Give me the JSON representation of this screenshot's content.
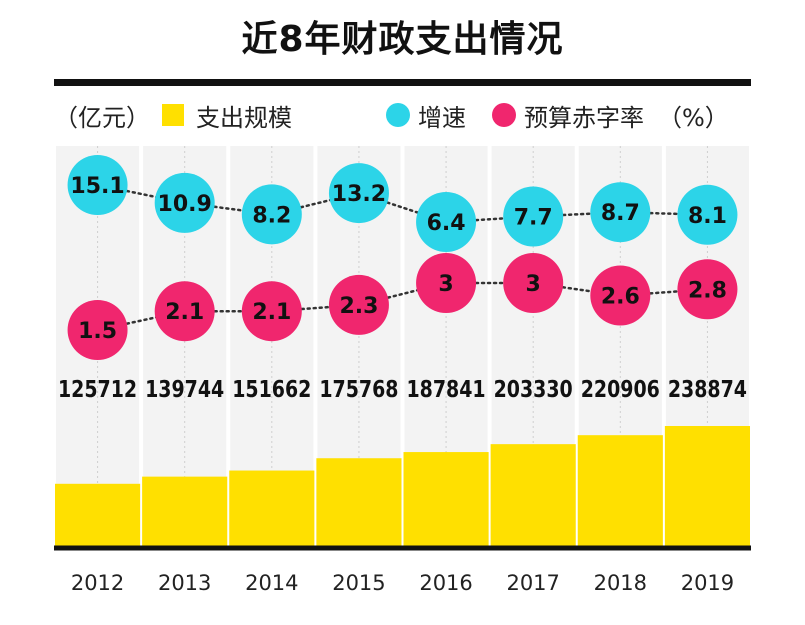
{
  "chart_data": {
    "type": "bar",
    "title": "近8年财政支出情况",
    "unit_left": "（亿元）",
    "unit_right": "（%）",
    "categories": [
      "2012",
      "2013",
      "2014",
      "2015",
      "2016",
      "2017",
      "2018",
      "2019"
    ],
    "series": [
      {
        "name": "支出规模",
        "type": "bar",
        "color": "#FFE000",
        "values": [
          125712,
          139744,
          151662,
          175768,
          187841,
          203330,
          220906,
          238874
        ]
      },
      {
        "name": "增速",
        "type": "line-dot",
        "color": "#2CD4E8",
        "values": [
          15.1,
          10.9,
          8.2,
          13.2,
          6.4,
          7.7,
          8.7,
          8.1
        ]
      },
      {
        "name": "预算赤字率",
        "type": "line-dot",
        "color": "#F0266E",
        "values": [
          1.5,
          2.1,
          2.1,
          2.3,
          3,
          3,
          2.6,
          2.8
        ]
      }
    ],
    "colors": {
      "panel": "#F3F3F3",
      "rule": "#111111"
    }
  }
}
